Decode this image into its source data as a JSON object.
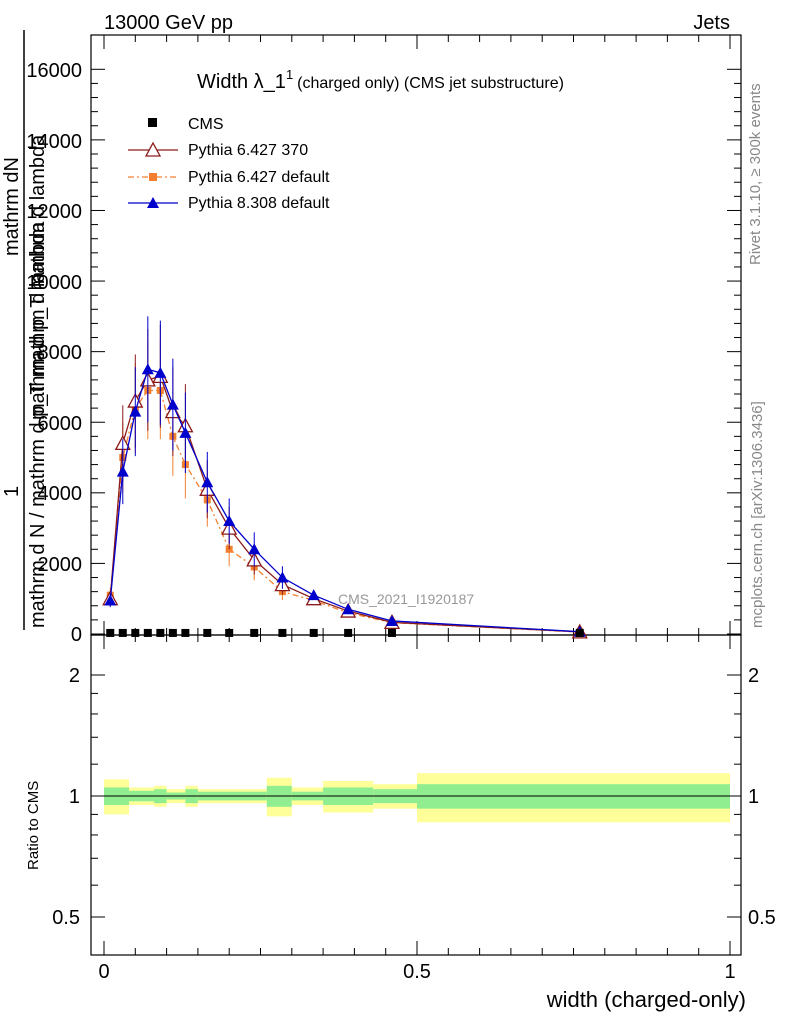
{
  "header": {
    "energy_label": "13000 GeV pp",
    "process_label": "Jets",
    "side_rivet": "Rivet 3.1.10, ≥ 300k events",
    "side_mcplots": "mcplots.cern.ch [arXiv:1306.3436]",
    "watermark": "CMS_2021_I1920187"
  },
  "chart_data": {
    "type": "line",
    "title_main": "Width λ_1",
    "title_sup": "1",
    "title_sub": "(charged only) (CMS jet substructure)",
    "xlabel": "width (charged-only)",
    "ylabel_top": "1",
    "ylabel_numer": "mathrm dN",
    "ylabel_denom": "mathrm d p_T mathrm d lambda",
    "ylabel_overlay": "mathrm d N / mathrm d p_T mathrm d lambda",
    "ratio_ylabel": "Ratio to CMS",
    "xlim": [
      0,
      1
    ],
    "ylim": [
      0,
      17000
    ],
    "ratio_ylim": [
      0.4,
      2.3
    ],
    "x_ticks": [
      "0",
      "0.5",
      "1"
    ],
    "y_ticks": [
      "0",
      "2000",
      "4000",
      "6000",
      "8000",
      "10000",
      "12000",
      "14000",
      "16000"
    ],
    "ratio_ticks": [
      "0.5",
      "1",
      "2"
    ],
    "x": [
      0.01,
      0.03,
      0.05,
      0.07,
      0.09,
      0.11,
      0.13,
      0.165,
      0.2,
      0.24,
      0.285,
      0.335,
      0.39,
      0.46,
      0.76
    ],
    "series": [
      {
        "name": "CMS",
        "color": "#000000",
        "values": [
          30,
          30,
          30,
          30,
          30,
          30,
          30,
          30,
          30,
          30,
          30,
          30,
          30,
          30,
          30
        ]
      },
      {
        "name": "Pythia 6.427 370",
        "color": "#8b1a1a",
        "values": [
          1000,
          5400,
          6600,
          7200,
          7300,
          6300,
          5900,
          4100,
          3000,
          2100,
          1400,
          1000,
          650,
          330,
          60
        ]
      },
      {
        "name": "Pythia 6.427 default",
        "color": "#f28030",
        "values": [
          1100,
          5000,
          6400,
          6900,
          6900,
          5600,
          4800,
          3800,
          2400,
          1900,
          1200,
          950,
          600,
          320,
          55
        ]
      },
      {
        "name": "Pythia 8.308 default",
        "color": "#0000cc",
        "values": [
          950,
          4600,
          6300,
          7500,
          7400,
          6500,
          5700,
          4300,
          3200,
          2400,
          1600,
          1100,
          700,
          370,
          65
        ]
      }
    ],
    "ratio_bands": [
      {
        "from": 0.0,
        "to": 0.04,
        "inner": 0.05,
        "outer": 0.1
      },
      {
        "from": 0.04,
        "to": 0.08,
        "inner": 0.03,
        "outer": 0.05
      },
      {
        "from": 0.08,
        "to": 0.1,
        "inner": 0.04,
        "outer": 0.06
      },
      {
        "from": 0.1,
        "to": 0.13,
        "inner": 0.02,
        "outer": 0.04
      },
      {
        "from": 0.13,
        "to": 0.15,
        "inner": 0.04,
        "outer": 0.06
      },
      {
        "from": 0.15,
        "to": 0.26,
        "inner": 0.025,
        "outer": 0.04
      },
      {
        "from": 0.26,
        "to": 0.3,
        "inner": 0.06,
        "outer": 0.11
      },
      {
        "from": 0.3,
        "to": 0.35,
        "inner": 0.025,
        "outer": 0.05
      },
      {
        "from": 0.35,
        "to": 0.43,
        "inner": 0.05,
        "outer": 0.09
      },
      {
        "from": 0.43,
        "to": 0.5,
        "inner": 0.04,
        "outer": 0.07
      },
      {
        "from": 0.5,
        "to": 1.0,
        "inner": 0.07,
        "outer": 0.14
      }
    ],
    "legend_position": "top-left"
  }
}
